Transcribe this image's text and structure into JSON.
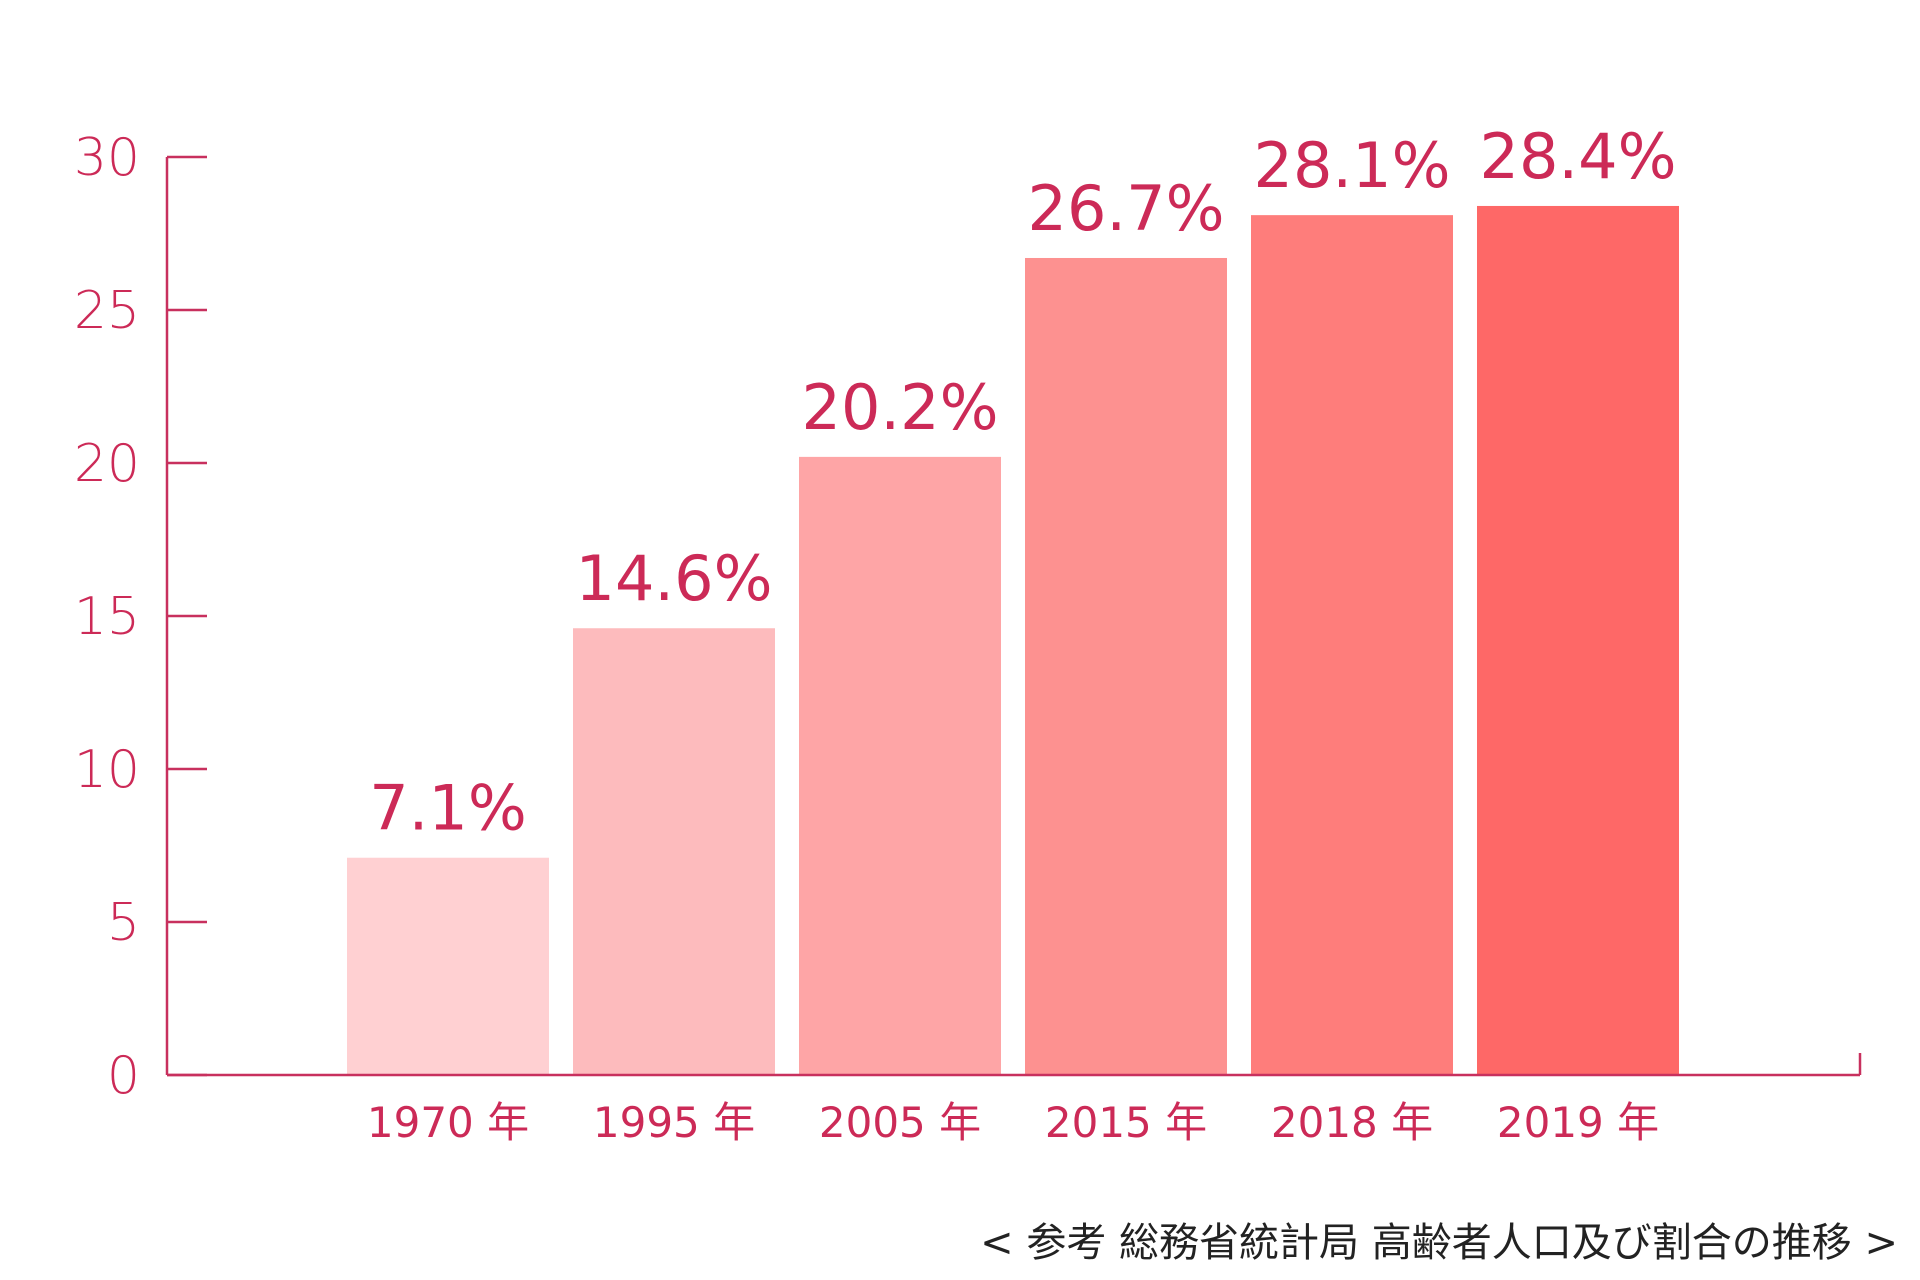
{
  "chart_data": {
    "type": "bar",
    "categories": [
      "1970 年",
      "1995 年",
      "2005 年",
      "2015 年",
      "2018 年",
      "2019 年"
    ],
    "values": [
      7.1,
      14.6,
      20.2,
      26.7,
      28.1,
      28.4
    ],
    "data_labels": [
      "7.1%",
      "14.6%",
      "20.2%",
      "26.7%",
      "28.1%",
      "28.4%"
    ],
    "bar_colors": [
      "#ffd0d2",
      "#fdbbbd",
      "#fea5a6",
      "#fd9190",
      "#fe7d7b",
      "#fe6867"
    ],
    "title": "",
    "xlabel": "",
    "ylabel": "",
    "ylim": [
      0,
      30
    ],
    "yticks": [
      0,
      5,
      10,
      15,
      20,
      25,
      30
    ],
    "grid": false,
    "legend": "none",
    "axis_color": "#c8305e",
    "text_color": "#cc2a57"
  },
  "source_note": "< 参考 総務省統計局 高齢者人口及び割合の推移 >"
}
